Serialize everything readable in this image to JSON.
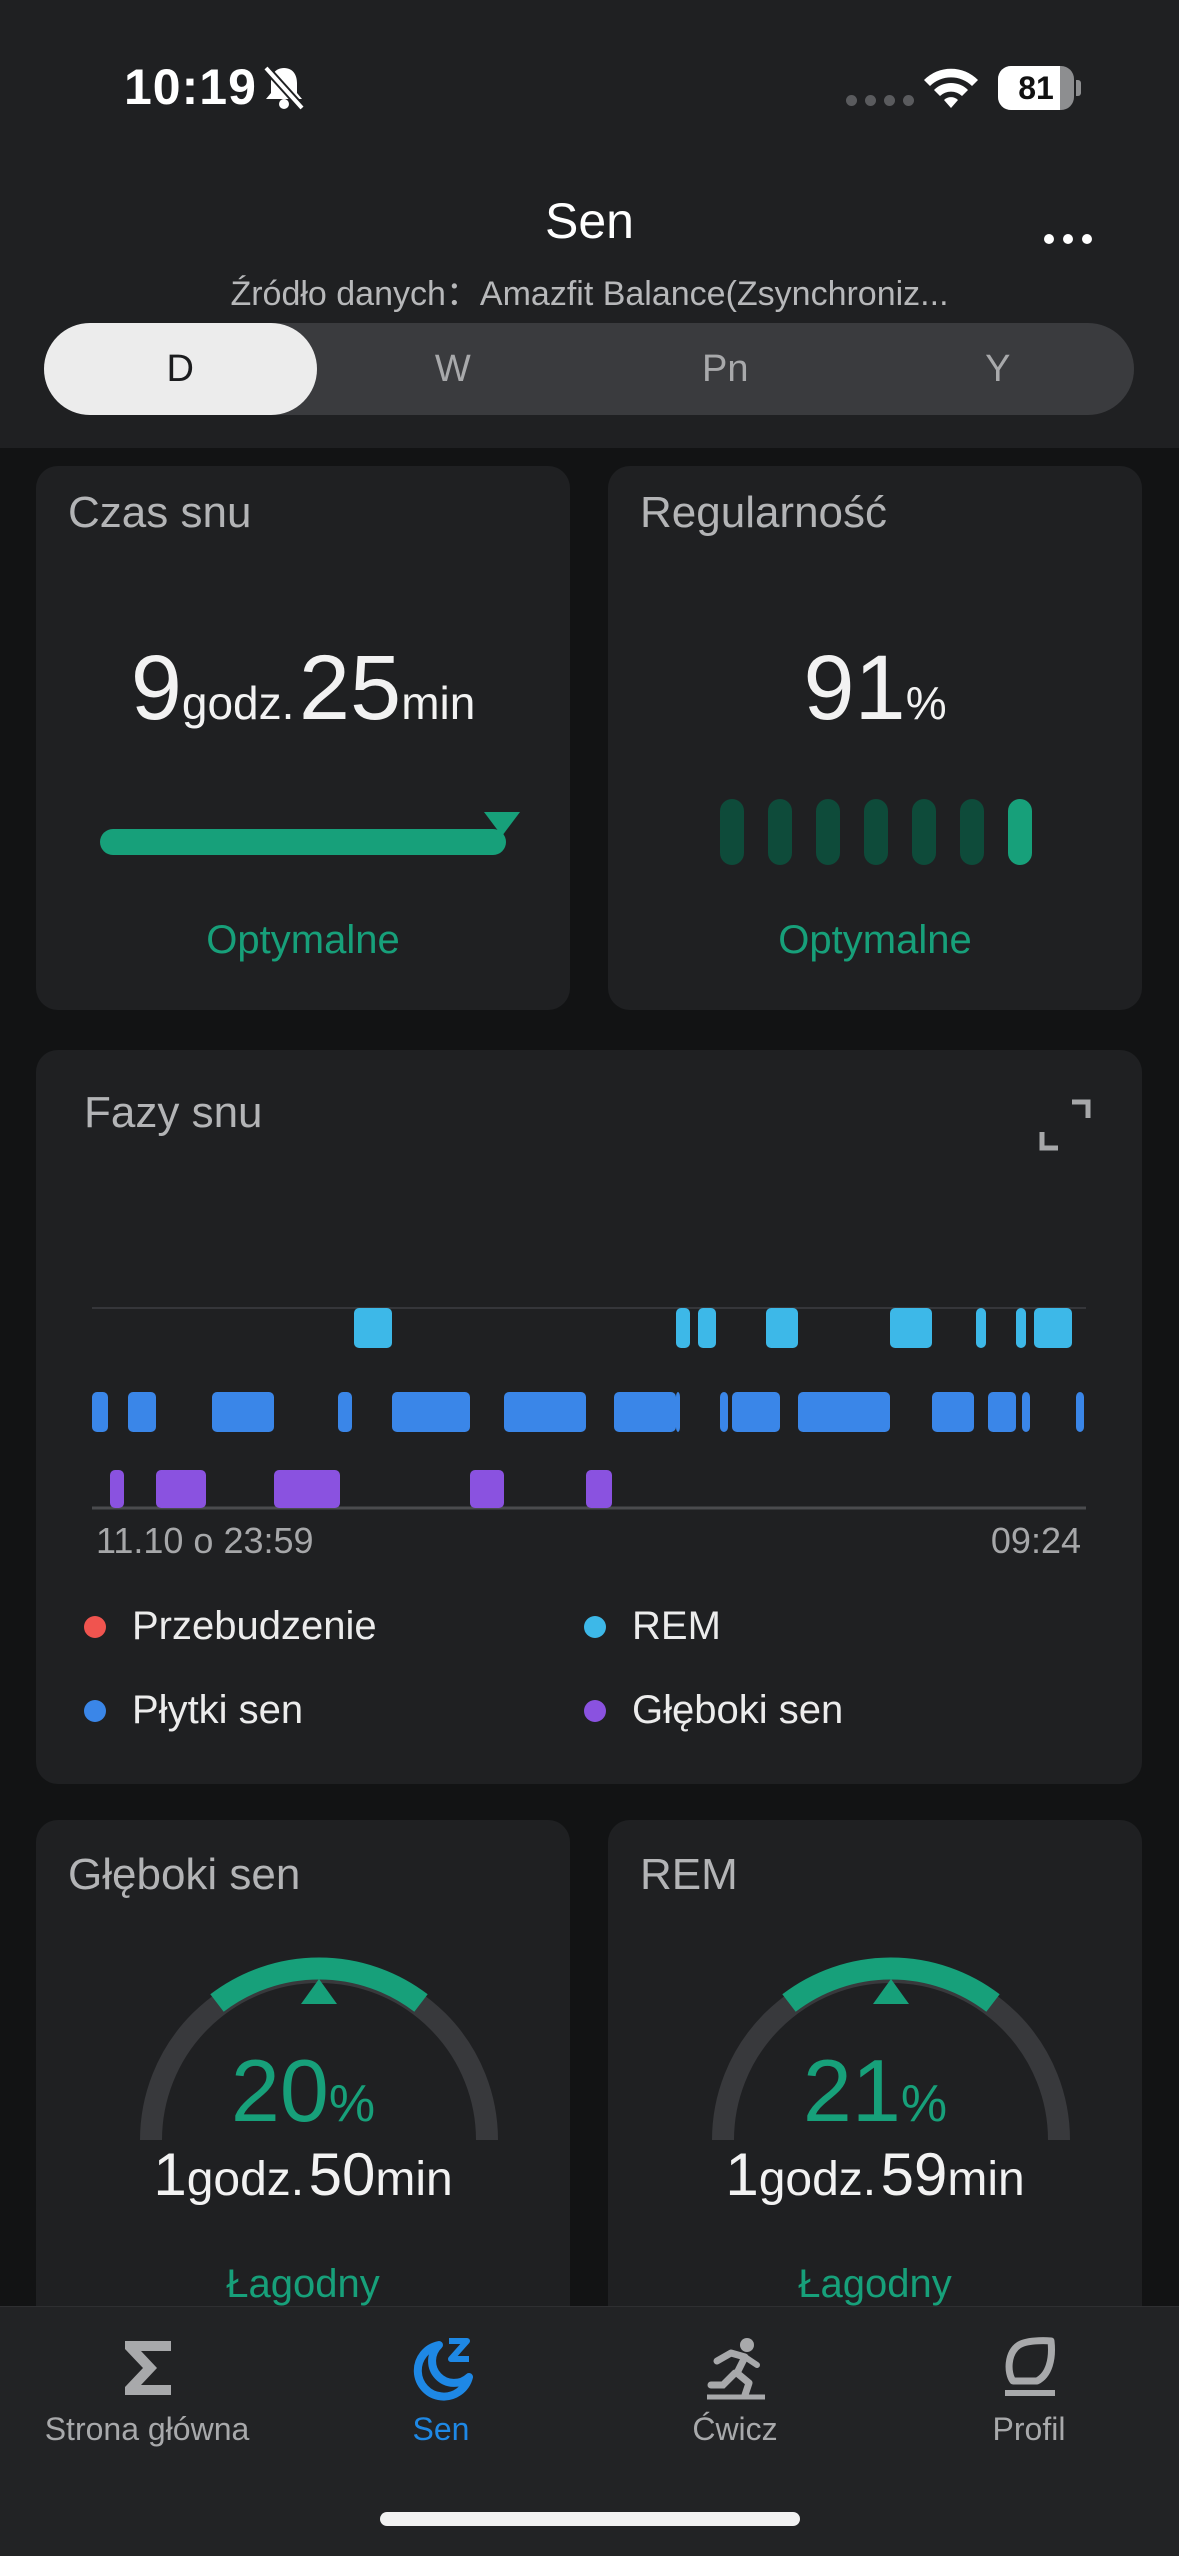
{
  "status": {
    "time": "10:19",
    "battery": "81",
    "battery_level": 0.81
  },
  "header": {
    "title": "Sen",
    "source": "Źródło danych：Amazfit Balance(Zsynchroniz...",
    "tabs": [
      "D",
      "W",
      "Pn",
      "Y"
    ],
    "active_tab": "D"
  },
  "sleep_time": {
    "title": "Czas snu",
    "hours": "9",
    "hours_unit": "godz.",
    "minutes": "25",
    "minutes_unit": "min",
    "status": "Optymalne"
  },
  "regularity": {
    "title": "Regularność",
    "value": "91",
    "unit": "%",
    "status": "Optymalne",
    "bars_on": [
      false,
      false,
      false,
      false,
      false,
      false,
      true
    ]
  },
  "phases": {
    "title": "Fazy snu",
    "start_label": "11.10 o 23:59",
    "end_label": "09:24",
    "legend": {
      "awake": "Przebudzenie",
      "rem": "REM",
      "light": "Płytki sen",
      "deep": "Głęboki sen"
    },
    "colors": {
      "awake": "#f0544f",
      "rem": "#3db8e8",
      "light": "#3a86e8",
      "deep": "#8a52e0"
    }
  },
  "deep_sleep": {
    "title": "Głęboki sen",
    "percent": "20",
    "unit": "%",
    "hours": "1",
    "hours_unit": "godz.",
    "minutes": "50",
    "minutes_unit": "min",
    "status": "Łagodny"
  },
  "rem_sleep": {
    "title": "REM",
    "percent": "21",
    "unit": "%",
    "hours": "1",
    "hours_unit": "godz.",
    "minutes": "59",
    "minutes_unit": "min",
    "status": "Łagodny"
  },
  "nav": {
    "home": "Strona główna",
    "sleep": "Sen",
    "workout": "Ćwicz",
    "profile": "Profil"
  }
}
